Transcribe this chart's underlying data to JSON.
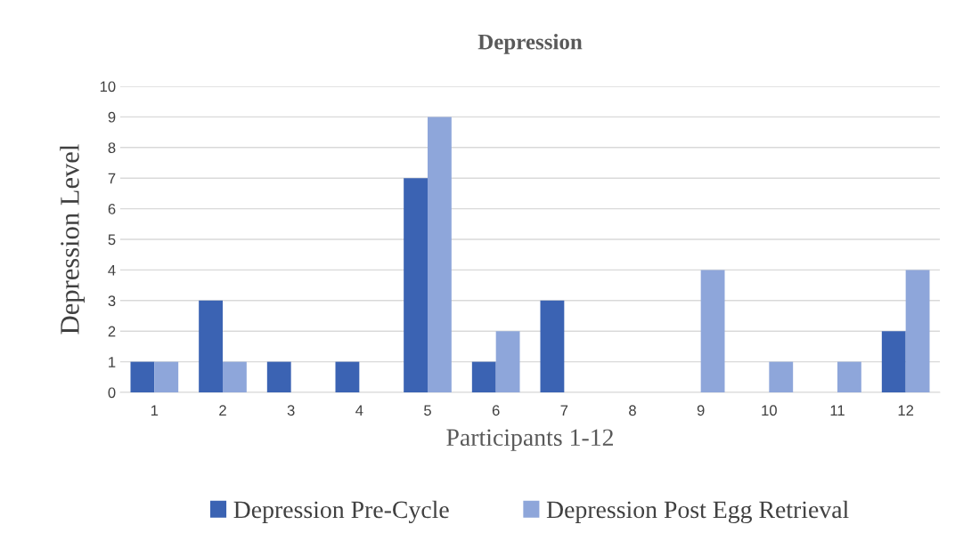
{
  "chart_data": {
    "type": "bar",
    "title": "Depression",
    "xlabel": "Participants 1-12",
    "ylabel": "Depression Level",
    "categories": [
      "1",
      "2",
      "3",
      "4",
      "5",
      "6",
      "7",
      "8",
      "9",
      "10",
      "11",
      "12"
    ],
    "series": [
      {
        "name": "Depression Pre-Cycle",
        "color": "#3b63b3",
        "values": [
          1,
          3,
          1,
          1,
          7,
          1,
          3,
          0,
          0,
          0,
          0,
          2
        ]
      },
      {
        "name": "Depression Post Egg Retrieval",
        "color": "#8ea6da",
        "values": [
          1,
          1,
          0,
          0,
          9,
          2,
          0,
          0,
          4,
          1,
          1,
          4
        ]
      }
    ],
    "ylim": [
      0,
      10
    ],
    "yticks": [
      0,
      1,
      2,
      3,
      4,
      5,
      6,
      7,
      8,
      9,
      10
    ],
    "grid": "y",
    "legend": "bottom"
  }
}
